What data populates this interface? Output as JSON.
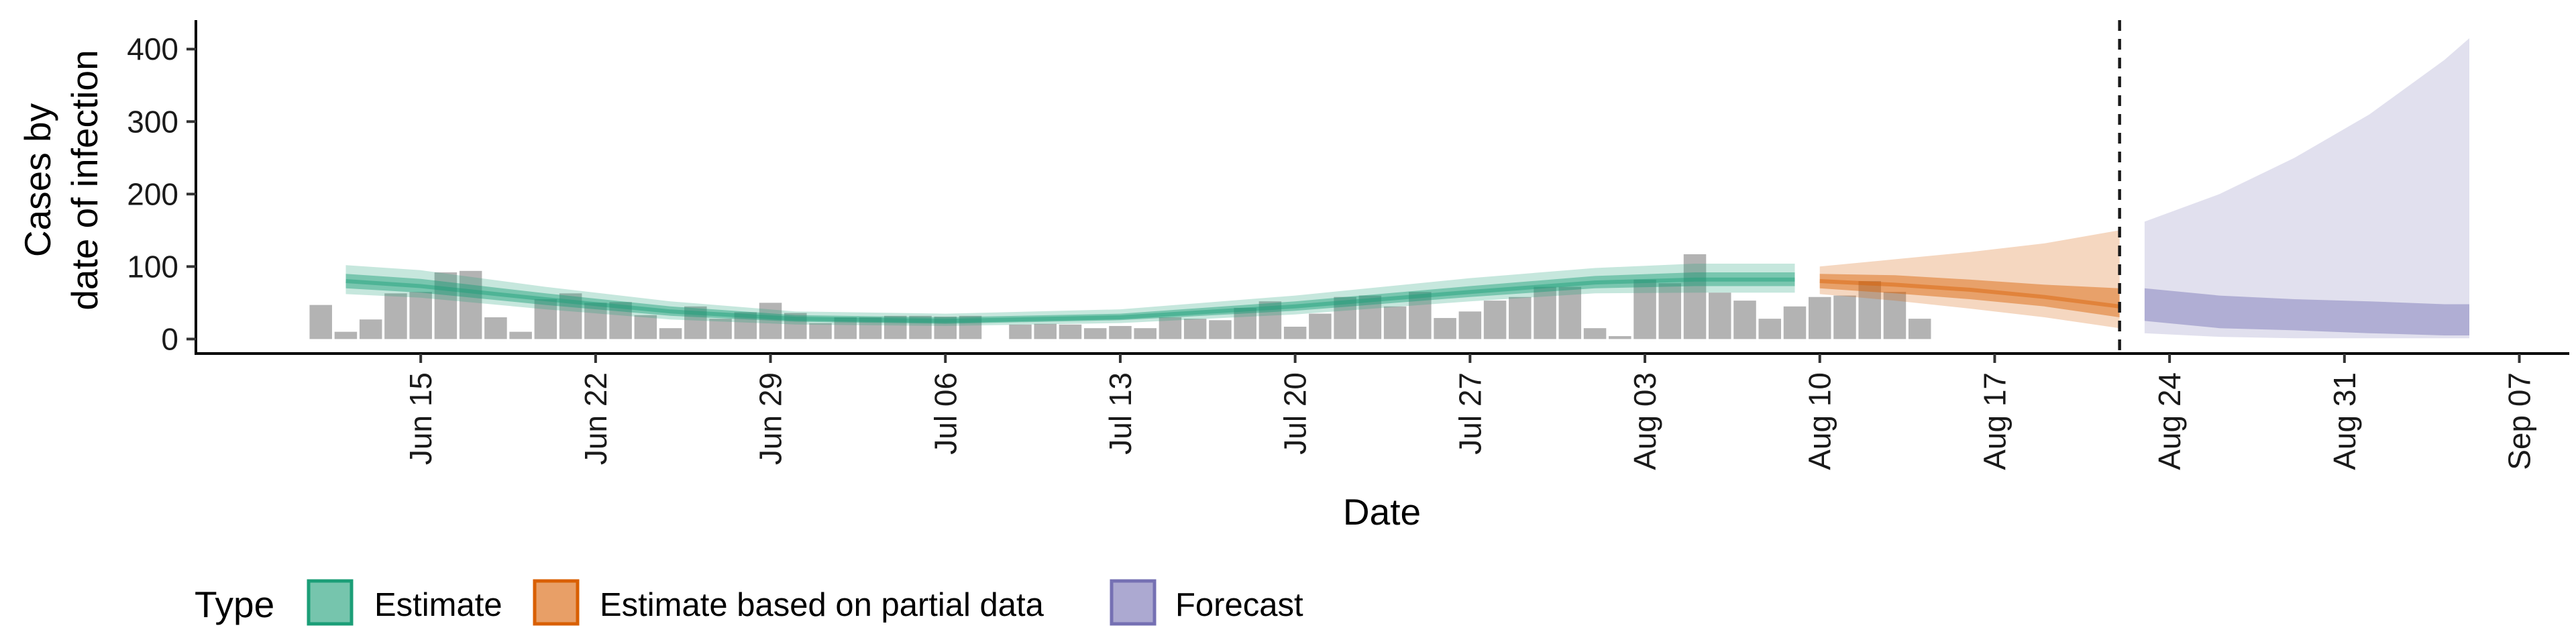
{
  "chart_data": {
    "type": "area",
    "xlabel": "Date",
    "ylabel_lines": [
      "Cases by",
      "date of infection"
    ],
    "ylim": [
      -20,
      440
    ],
    "y_ticks": [
      0,
      100,
      200,
      300,
      400
    ],
    "x_domain": [
      "2021-06-06",
      "2021-09-09"
    ],
    "x_ticks": [
      "Jun 15",
      "Jun 22",
      "Jun 29",
      "Jul 06",
      "Jul 13",
      "Jul 20",
      "Jul 27",
      "Aug 03",
      "Aug 10",
      "Aug 17",
      "Aug 24",
      "Aug 31",
      "Sep 07"
    ],
    "x_tick_dates": [
      "2021-06-15",
      "2021-06-22",
      "2021-06-29",
      "2021-07-06",
      "2021-07-13",
      "2021-07-20",
      "2021-07-27",
      "2021-08-03",
      "2021-08-10",
      "2021-08-17",
      "2021-08-24",
      "2021-08-31",
      "2021-09-07"
    ],
    "forecast_start_marker": "2021-08-22",
    "observed_cases": {
      "start": "2021-06-11",
      "values": [
        47,
        10,
        27,
        63,
        65,
        92,
        94,
        30,
        10,
        55,
        63,
        50,
        51,
        33,
        15,
        45,
        28,
        37,
        50,
        36,
        22,
        30,
        30,
        32,
        32,
        31,
        32,
        0,
        20,
        21,
        20,
        15,
        18,
        15,
        30,
        28,
        26,
        43,
        52,
        17,
        35,
        58,
        60,
        45,
        65,
        29,
        38,
        53,
        58,
        72,
        72,
        15,
        4,
        82,
        77,
        117,
        64,
        53,
        28,
        45,
        58,
        60,
        80,
        65,
        28
      ]
    },
    "legend": {
      "title": "Type",
      "entries": [
        "Estimate",
        "Estimate based on partial data",
        "Forecast"
      ]
    },
    "series": [
      {
        "name": "Estimate",
        "color": "#1b9e77",
        "x": [
          "2021-06-12",
          "2021-06-15",
          "2021-06-20",
          "2021-06-25",
          "2021-06-30",
          "2021-07-06",
          "2021-07-13",
          "2021-07-20",
          "2021-07-27",
          "2021-08-01",
          "2021-08-05",
          "2021-08-09"
        ],
        "median": [
          80,
          73,
          55,
          38,
          28,
          25,
          30,
          45,
          65,
          78,
          82,
          82
        ],
        "inner_lower": [
          70,
          64,
          47,
          32,
          24,
          21,
          26,
          39,
          58,
          70,
          73,
          73
        ],
        "inner_upper": [
          90,
          83,
          63,
          45,
          33,
          30,
          35,
          52,
          73,
          87,
          92,
          92
        ],
        "outer_lower": [
          62,
          57,
          41,
          27,
          20,
          18,
          22,
          34,
          52,
          63,
          64,
          64
        ],
        "outer_upper": [
          102,
          95,
          72,
          52,
          38,
          35,
          41,
          60,
          84,
          98,
          104,
          104
        ]
      },
      {
        "name": "Estimate based on partial data",
        "color": "#d95f02",
        "x": [
          "2021-08-10",
          "2021-08-13",
          "2021-08-16",
          "2021-08-19",
          "2021-08-22"
        ],
        "median": [
          80,
          75,
          68,
          58,
          45
        ],
        "inner_lower": [
          70,
          63,
          55,
          45,
          30
        ],
        "inner_upper": [
          90,
          88,
          82,
          75,
          70
        ],
        "outer_lower": [
          62,
          53,
          42,
          30,
          15
        ],
        "outer_upper": [
          100,
          110,
          120,
          132,
          150
        ]
      },
      {
        "name": "Forecast",
        "color": "#7570b3",
        "x": [
          "2021-08-23",
          "2021-08-26",
          "2021-08-29",
          "2021-09-01",
          "2021-09-04",
          "2021-09-05"
        ],
        "inner_lower": [
          25,
          15,
          12,
          8,
          5,
          5
        ],
        "inner_upper": [
          70,
          60,
          55,
          52,
          48,
          48
        ],
        "outer_lower": [
          8,
          3,
          1,
          1,
          1,
          1
        ],
        "outer_upper": [
          162,
          200,
          250,
          310,
          385,
          415
        ]
      }
    ]
  }
}
